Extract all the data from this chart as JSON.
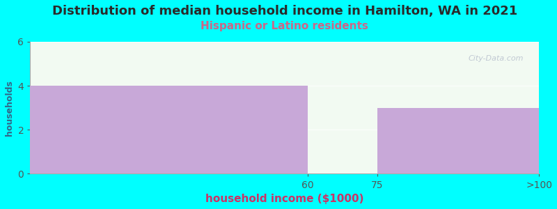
{
  "title": "Distribution of median household income in Hamilton, WA in 2021",
  "subtitle": "Hispanic or Latino residents",
  "xlabel": "household income ($1000)",
  "ylabel": "households",
  "bin_lefts": [
    0,
    60,
    75
  ],
  "bin_rights": [
    60,
    75,
    110
  ],
  "bin_labels": [
    "60",
    "75",
    ">100"
  ],
  "values": [
    4,
    0,
    3
  ],
  "bar_color": "#c8a8d8",
  "plot_bg_color": "#f2faf2",
  "fig_bg_color": "#00ffff",
  "title_color": "#2a2a2a",
  "subtitle_color": "#cc6688",
  "xlabel_color": "#cc3366",
  "ylabel_color": "#336688",
  "tick_color": "#555555",
  "ylim": [
    0,
    6
  ],
  "yticks": [
    0,
    2,
    4,
    6
  ],
  "title_fontsize": 13,
  "subtitle_fontsize": 11,
  "xlabel_fontsize": 11,
  "ylabel_fontsize": 9,
  "watermark": "City-Data.com"
}
